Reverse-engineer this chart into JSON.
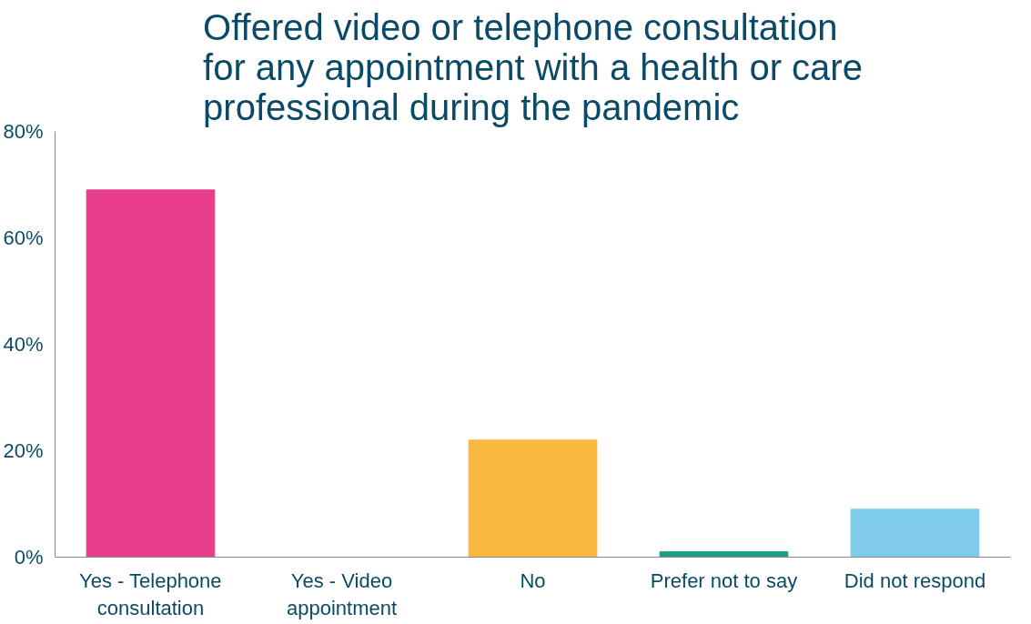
{
  "chart_data": {
    "type": "bar",
    "title": "Offered video or telephone consultation for any appointment with a health or care professional during the pandemic",
    "categories": [
      "Yes - Telephone consultation",
      "Yes - Video appointment",
      "No",
      "Prefer not to say",
      "Did not respond"
    ],
    "values": [
      69,
      0,
      22,
      1,
      9
    ],
    "colors": [
      "#e83e8c",
      "#7b3fa0",
      "#f8b73e",
      "#1a9e85",
      "#7ecbea"
    ],
    "ylim": [
      0,
      80
    ],
    "yticks": [
      {
        "value": 0,
        "label": "0%"
      },
      {
        "value": 20,
        "label": "20%"
      },
      {
        "value": 40,
        "label": "40%"
      },
      {
        "value": 60,
        "label": "60%"
      },
      {
        "value": 80,
        "label": "80%"
      }
    ],
    "grid": false
  }
}
